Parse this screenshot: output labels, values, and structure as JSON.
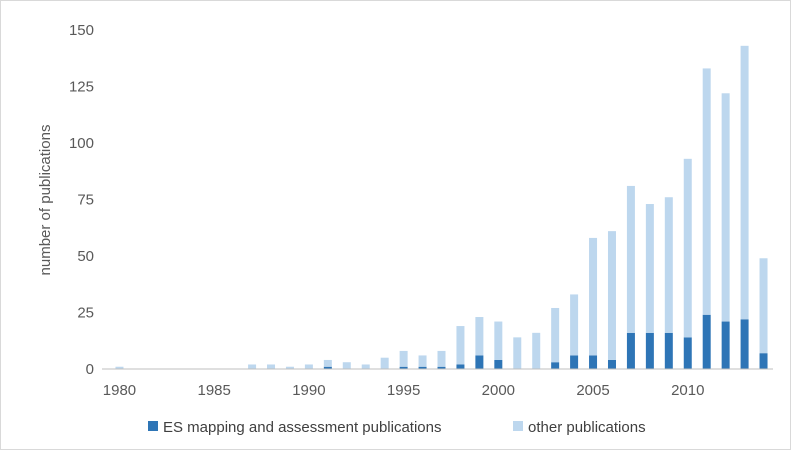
{
  "chart_data": {
    "type": "bar",
    "stacked": true,
    "title": "",
    "xlabel": "",
    "ylabel": "number of publications",
    "ylim": [
      0,
      150
    ],
    "yticks": [
      "0",
      "25",
      "50",
      "75",
      "100",
      "125",
      "150"
    ],
    "xticks": [
      "1980",
      "1985",
      "1990",
      "1995",
      "2000",
      "2005",
      "2010"
    ],
    "categories": [
      1980,
      1981,
      1982,
      1983,
      1984,
      1985,
      1986,
      1987,
      1988,
      1989,
      1990,
      1991,
      1992,
      1993,
      1994,
      1995,
      1996,
      1997,
      1998,
      1999,
      2000,
      2001,
      2002,
      2003,
      2004,
      2005,
      2006,
      2007,
      2008,
      2009,
      2010,
      2011,
      2012,
      2013,
      2014
    ],
    "series": [
      {
        "name": "ES mapping and assessment publications",
        "color": "#2e75b6",
        "values": [
          0,
          0,
          0,
          0,
          0,
          0,
          0,
          0,
          0,
          0,
          0,
          1,
          0,
          0,
          0,
          1,
          1,
          1,
          2,
          6,
          4,
          0,
          0,
          3,
          6,
          6,
          4,
          16,
          16,
          16,
          14,
          24,
          21,
          22,
          7
        ]
      },
      {
        "name": "other publications",
        "color": "#bdd7ee",
        "values": [
          1,
          0,
          0,
          0,
          0,
          0,
          0,
          2,
          2,
          1,
          2,
          3,
          3,
          2,
          5,
          7,
          5,
          7,
          17,
          17,
          17,
          14,
          16,
          24,
          27,
          52,
          57,
          65,
          57,
          60,
          79,
          109,
          101,
          121,
          42
        ]
      }
    ],
    "grid": false,
    "legend_position": "bottom"
  }
}
